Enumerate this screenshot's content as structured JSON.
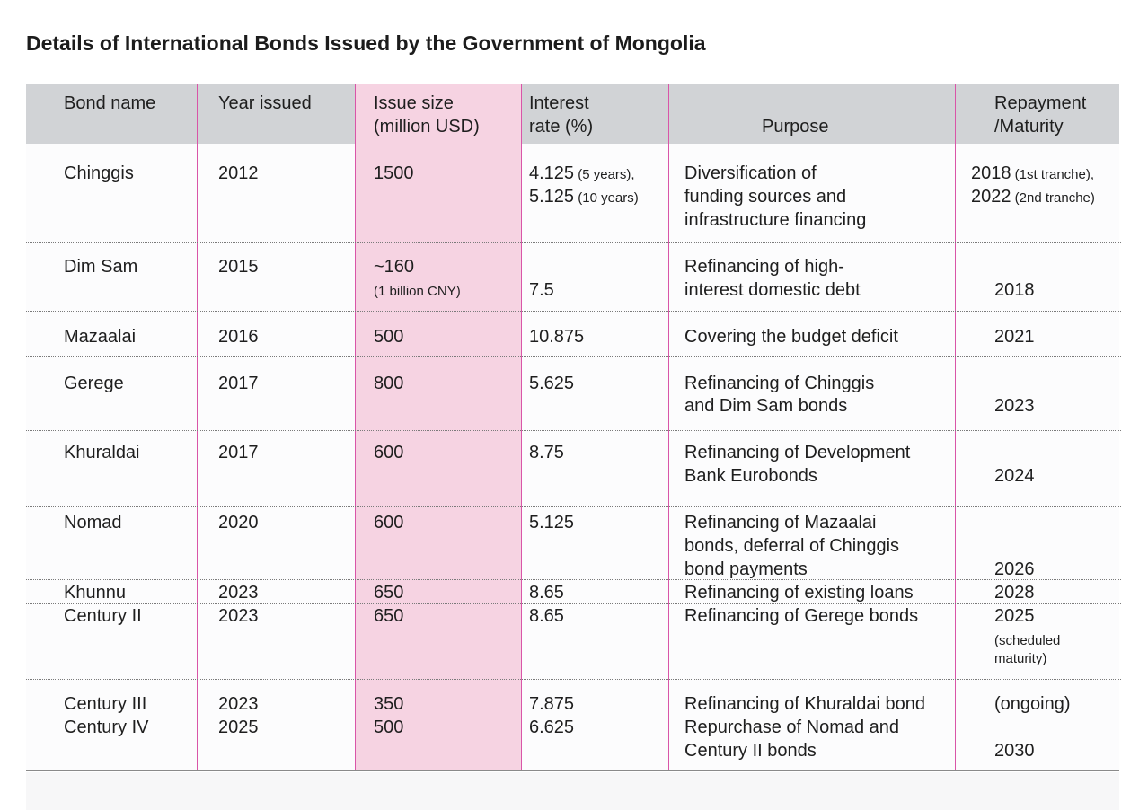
{
  "title": "Details of International Bonds Issued by the Government of Mongolia",
  "headers": {
    "bond_name": "Bond name",
    "year_issued": "Year issued",
    "issue_size_1": "Issue size",
    "issue_size_2": "(million USD)",
    "interest_1": "Interest",
    "interest_2": "rate (%)",
    "purpose": "Purpose",
    "repayment_1": "Repayment",
    "repayment_2": "/Maturity"
  },
  "rows": [
    {
      "name": "Chinggis",
      "year": "2012",
      "size": "1500",
      "rate_1": "4.125",
      "rate_1_note": " (5 years),",
      "rate_2": "5.125",
      "rate_2_note": " (10 years)",
      "purpose_1": "Diversification of",
      "purpose_2": "funding sources and",
      "purpose_3": "infrastructure financing",
      "repay_1": "2018",
      "repay_1_note": " (1st tranche),",
      "repay_2": "2022",
      "repay_2_note": " (2nd tranche)"
    },
    {
      "name": "Dim Sam",
      "year": "2015",
      "size": "~160",
      "size_note": "(1 billion CNY)",
      "rate": "7.5",
      "purpose_1": "Refinancing of high-",
      "purpose_2": "interest domestic debt",
      "repay": "2018"
    },
    {
      "name": "Mazaalai",
      "year": "2016",
      "size": "500",
      "rate": "10.875",
      "purpose_1": "Covering the budget deficit",
      "repay": "2021"
    },
    {
      "name": "Gerege",
      "year": "2017",
      "size": "800",
      "rate": "5.625",
      "purpose_1": "Refinancing of Chinggis",
      "purpose_2": "and Dim Sam bonds",
      "repay": "2023"
    },
    {
      "name": "Khuraldai",
      "year": "2017",
      "size": "600",
      "rate": "8.75",
      "purpose_1": "Refinancing of Development",
      "purpose_2": "Bank Eurobonds",
      "repay": "2024"
    },
    {
      "name": "Nomad",
      "year": "2020",
      "size": "600",
      "rate": "5.125",
      "purpose_1": "Refinancing of Mazaalai",
      "purpose_2": "bonds, deferral of Chinggis",
      "purpose_3": "bond payments",
      "repay": "2026"
    },
    {
      "name": "Khunnu",
      "year": "2023",
      "size": "650",
      "rate": "8.65",
      "purpose_1": "Refinancing of existing loans",
      "repay": "2028"
    },
    {
      "name": "Century II",
      "year": "2023",
      "size": "650",
      "rate": "8.65",
      "purpose_1": "Refinancing of Gerege bonds",
      "repay": "2025",
      "repay_note_1": "(scheduled",
      "repay_note_2": "maturity)"
    },
    {
      "name": "Century III",
      "year": "2023",
      "size": "350",
      "rate": "7.875",
      "purpose_1": "Refinancing of Khuraldai bond",
      "repay": "(ongoing)"
    },
    {
      "name": "Century IV",
      "year": "2025",
      "size": "500",
      "rate": "6.625",
      "purpose_1": "Repurchase of Nomad and",
      "purpose_2": "Century II bonds",
      "repay": "2030"
    }
  ],
  "colors": {
    "header_bg": "#d1d3d6",
    "highlight_column": "#f6d3e2",
    "column_rule": "#d955a8"
  }
}
